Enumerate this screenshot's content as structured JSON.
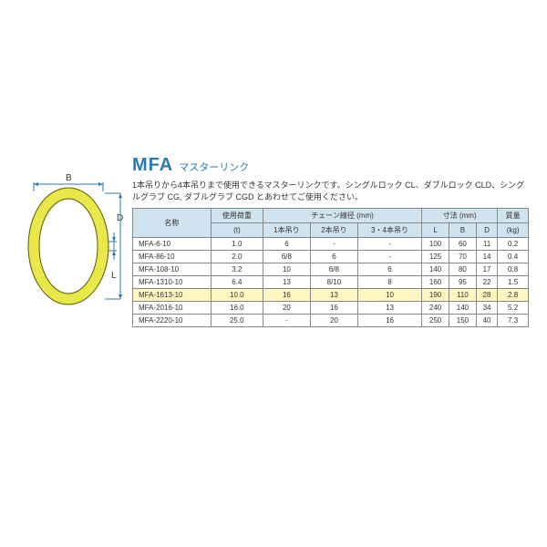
{
  "title": {
    "main": "MFA",
    "sub": "マスターリンク"
  },
  "description": "1本吊りから4本吊りまで使用できるマスターリンクです。シングルロック CL、ダブルロック CLD、シングルグラブ CG, ダブルグラブ CGD とあわせてご使用ください。",
  "diagram": {
    "labels": {
      "B": "B",
      "D": "D",
      "L": "L"
    },
    "ring_color": "#e8e84a",
    "line_color": "#2a7ab0"
  },
  "table": {
    "headers": {
      "name": "名称",
      "load": "使用荷重",
      "load_unit": "(t)",
      "chain": "チェーン線径 (mm)",
      "chain1": "1本吊り",
      "chain2": "2本吊り",
      "chain34": "3・4本吊り",
      "dim": "寸法 (mm)",
      "L": "L",
      "B": "B",
      "D": "D",
      "mass": "質量",
      "mass_unit": "(kg)"
    },
    "rows": [
      {
        "name": "MFA-6-10",
        "load": "1.0",
        "c1": "6",
        "c2": "-",
        "c3": "-",
        "L": "100",
        "B": "60",
        "D": "11",
        "mass": "0.2",
        "hl": false
      },
      {
        "name": "MFA-86-10",
        "load": "2.0",
        "c1": "6/8",
        "c2": "6",
        "c3": "-",
        "L": "125",
        "B": "70",
        "D": "14",
        "mass": "0.4",
        "hl": false
      },
      {
        "name": "MFA-108-10",
        "load": "3.2",
        "c1": "10",
        "c2": "6/8",
        "c3": "6",
        "L": "140",
        "B": "80",
        "D": "17",
        "mass": "0.8",
        "hl": false
      },
      {
        "name": "MFA-1310-10",
        "load": "6.4",
        "c1": "13",
        "c2": "8/10",
        "c3": "8",
        "L": "160",
        "B": "95",
        "D": "22",
        "mass": "1.5",
        "hl": false
      },
      {
        "name": "MFA-1613-10",
        "load": "10.0",
        "c1": "16",
        "c2": "13",
        "c3": "10",
        "L": "190",
        "B": "110",
        "D": "28",
        "mass": "2.8",
        "hl": true
      },
      {
        "name": "MFA-2016-10",
        "load": "16.0",
        "c1": "20",
        "c2": "16",
        "c3": "13",
        "L": "240",
        "B": "140",
        "D": "34",
        "mass": "5.2",
        "hl": false
      },
      {
        "name": "MFA-2220-10",
        "load": "25.0",
        "c1": "-",
        "c2": "20",
        "c3": "16",
        "L": "250",
        "B": "150",
        "D": "40",
        "mass": "7.3",
        "hl": false
      }
    ]
  }
}
